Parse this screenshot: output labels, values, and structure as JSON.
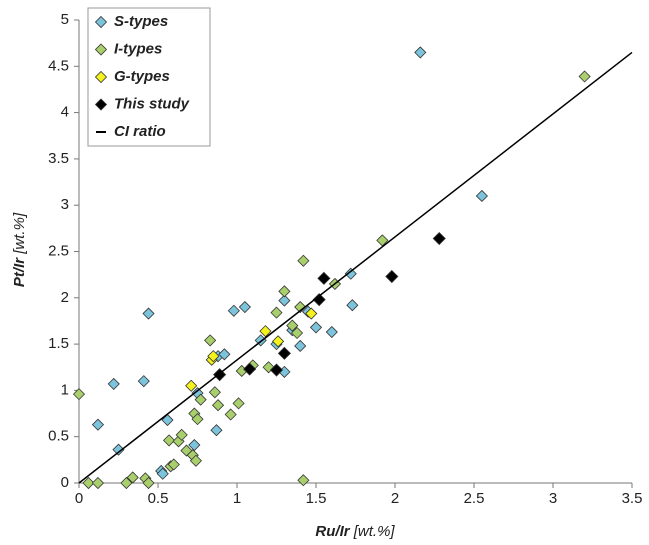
{
  "chart_data": {
    "type": "scatter",
    "x_label": "Ru/Ir",
    "x_unit": "[wt.%]",
    "y_label": "Pt/Ir",
    "y_unit": "[wt.%]",
    "xlim": [
      0,
      3.5
    ],
    "xticks": [
      0,
      0.5,
      1,
      1.5,
      2,
      2.5,
      3,
      3.5
    ],
    "ylim": [
      0,
      5
    ],
    "yticks": [
      0,
      0.5,
      1,
      1.5,
      2,
      2.5,
      3,
      3.5,
      4,
      4.5,
      5
    ],
    "grid": false,
    "legend": "upper-left",
    "series": [
      {
        "name": "S-types",
        "color": "#7cc4dc",
        "x": [
          2.16,
          2.55,
          0.44,
          0.22,
          0.41,
          0.12,
          0.25,
          0.56,
          0.52,
          0.53,
          0.73,
          0.87,
          0.88,
          0.92,
          0.98,
          1.05,
          1.15,
          1.3,
          1.3,
          1.35,
          1.4,
          1.45,
          1.5,
          1.6,
          1.72,
          1.73,
          0.75,
          1.25
        ],
        "values": [
          4.65,
          3.1,
          1.83,
          1.07,
          1.1,
          0.63,
          0.36,
          0.68,
          0.13,
          0.1,
          0.41,
          0.57,
          1.37,
          1.39,
          1.86,
          1.9,
          1.54,
          1.2,
          1.97,
          1.65,
          1.48,
          1.85,
          1.68,
          1.63,
          2.26,
          1.92,
          0.97,
          1.5
        ]
      },
      {
        "name": "I-types",
        "color": "#a9cf6c",
        "x": [
          0,
          0.06,
          0.12,
          0.3,
          0.34,
          0.42,
          0.44,
          0.58,
          0.6,
          0.57,
          0.63,
          0.65,
          0.68,
          0.72,
          0.74,
          0.73,
          0.75,
          0.77,
          0.83,
          0.86,
          0.88,
          0.96,
          1.01,
          1.1,
          1.2,
          1.25,
          1.3,
          1.35,
          1.38,
          1.4,
          1.42,
          1.62,
          1.92,
          3.2,
          1.42,
          1.03
        ],
        "values": [
          0.96,
          0,
          0,
          0,
          0.06,
          0.05,
          0,
          0.18,
          0.2,
          0.46,
          0.45,
          0.52,
          0.35,
          0.3,
          0.24,
          0.75,
          0.69,
          0.9,
          1.54,
          0.98,
          0.84,
          0.74,
          0.86,
          1.27,
          1.25,
          1.84,
          2.07,
          1.7,
          1.62,
          1.9,
          2.4,
          2.15,
          2.62,
          4.39,
          0.03,
          1.21
        ]
      },
      {
        "name": "G-types",
        "color": "#f3f21c",
        "x": [
          0.71,
          0.84,
          1.18,
          1.26,
          1.47,
          0.85
        ],
        "values": [
          1.05,
          1.33,
          1.64,
          1.53,
          1.83,
          1.37
        ]
      },
      {
        "name": "This study",
        "color": "#000000",
        "x": [
          0.89,
          1.08,
          1.25,
          1.3,
          1.52,
          1.55,
          1.98,
          2.28
        ],
        "values": [
          1.17,
          1.23,
          1.22,
          1.4,
          1.98,
          2.21,
          2.23,
          2.64
        ]
      },
      {
        "name": "CI ratio",
        "color": "#000000",
        "kind": "line",
        "x": [
          0,
          3.5
        ],
        "values": [
          0,
          4.65
        ]
      }
    ]
  }
}
